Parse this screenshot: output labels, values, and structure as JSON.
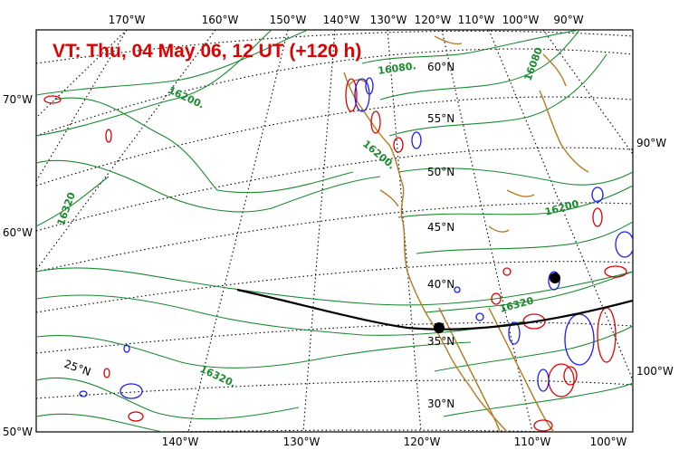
{
  "title": "VT:  Thu, 04 May 06, 12 UT (+120 h)",
  "top_lon_labels": [
    "170°W",
    "160°W",
    "150°W",
    "140°W",
    "130°W",
    "120°W",
    "110°W",
    "100°W",
    "90°W"
  ],
  "bottom_lon_labels": [
    "140°W",
    "130°W",
    "120°W",
    "110°W",
    "100°W"
  ],
  "left_labels": [
    "70°W",
    "60°W",
    "50°W"
  ],
  "right_labels": [
    "90°W",
    "100°W"
  ],
  "lat_labels": [
    "60°N",
    "55°N",
    "50°N",
    "45°N",
    "40°N",
    "35°N",
    "30°N",
    "25°N"
  ],
  "contour_labels": [
    "16080.",
    "16080",
    "16200.",
    "16200.",
    "16200",
    "16320",
    "16320",
    "16320."
  ],
  "colors": {
    "contour": "#1a8a2e",
    "coast": "#b8791f",
    "positive": "#e00000",
    "negative": "#1a1aff",
    "track": "#000000"
  }
}
